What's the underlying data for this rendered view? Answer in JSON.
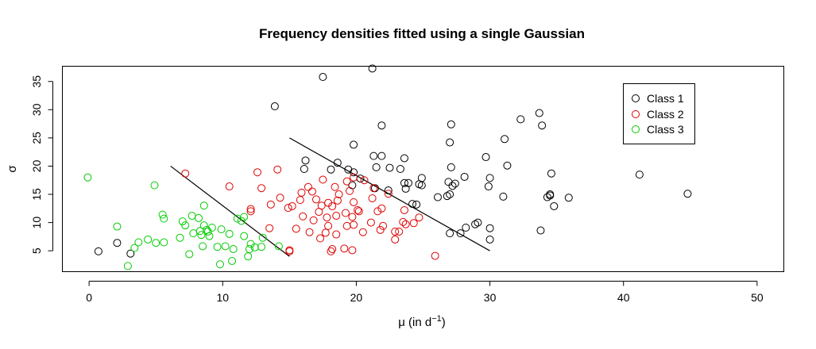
{
  "chart_data": {
    "type": "scatter",
    "title": "Frequency densities fitted using a single Gaussian",
    "xlabel_main": "μ (in d",
    "xlabel_sup": "−1",
    "xlabel_end": ")",
    "ylabel": "σ",
    "xlim": [
      -2,
      52
    ],
    "ylim": [
      1.3,
      37.7
    ],
    "x_ticks": [
      0,
      10,
      20,
      30,
      40,
      50
    ],
    "y_ticks": [
      5,
      10,
      15,
      20,
      25,
      30,
      35
    ],
    "legend_position": "top-right",
    "series": [
      {
        "name": "Class 1",
        "color": "#000000",
        "points": [
          [
            0.7,
            4.9
          ],
          [
            2.1,
            6.4
          ],
          [
            3.1,
            4.5
          ],
          [
            13.9,
            30.6
          ],
          [
            16.1,
            19.5
          ],
          [
            16.2,
            21.0
          ],
          [
            17.5,
            35.8
          ],
          [
            18.1,
            19.4
          ],
          [
            18.6,
            20.6
          ],
          [
            19.4,
            19.4
          ],
          [
            19.7,
            16.6
          ],
          [
            19.8,
            23.8
          ],
          [
            19.8,
            18.9
          ],
          [
            20.3,
            17.8
          ],
          [
            21.2,
            37.3
          ],
          [
            21.3,
            21.8
          ],
          [
            21.4,
            16.1
          ],
          [
            21.5,
            19.8
          ],
          [
            21.9,
            27.2
          ],
          [
            21.9,
            21.8
          ],
          [
            22.4,
            15.7
          ],
          [
            22.5,
            19.7
          ],
          [
            23.3,
            19.5
          ],
          [
            23.6,
            21.4
          ],
          [
            23.6,
            17.0
          ],
          [
            23.7,
            16.0
          ],
          [
            23.9,
            17.0
          ],
          [
            24.2,
            13.3
          ],
          [
            24.5,
            13.2
          ],
          [
            24.7,
            16.8
          ],
          [
            24.9,
            17.9
          ],
          [
            24.9,
            16.6
          ],
          [
            26.1,
            14.5
          ],
          [
            26.8,
            14.7
          ],
          [
            26.9,
            17.2
          ],
          [
            27.0,
            8.1
          ],
          [
            27.0,
            24.2
          ],
          [
            27.0,
            15.0
          ],
          [
            27.1,
            27.4
          ],
          [
            27.1,
            19.8
          ],
          [
            27.2,
            16.5
          ],
          [
            27.4,
            16.9
          ],
          [
            27.8,
            8.1
          ],
          [
            28.1,
            18.1
          ],
          [
            28.2,
            9.1
          ],
          [
            28.9,
            9.7
          ],
          [
            29.1,
            10.0
          ],
          [
            29.7,
            21.6
          ],
          [
            29.9,
            16.4
          ],
          [
            30.0,
            7.0
          ],
          [
            30.0,
            17.9
          ],
          [
            30.0,
            9.0
          ],
          [
            31.0,
            14.6
          ],
          [
            31.1,
            24.8
          ],
          [
            31.3,
            20.1
          ],
          [
            32.3,
            28.3
          ],
          [
            33.7,
            29.4
          ],
          [
            33.8,
            8.6
          ],
          [
            33.9,
            27.2
          ],
          [
            34.3,
            14.5
          ],
          [
            34.5,
            15.0
          ],
          [
            34.5,
            14.8
          ],
          [
            34.6,
            18.7
          ],
          [
            34.8,
            12.9
          ],
          [
            35.9,
            14.4
          ],
          [
            41.2,
            18.5
          ],
          [
            44.8,
            15.1
          ]
        ]
      },
      {
        "name": "Class 2",
        "color": "#df0000",
        "points": [
          [
            7.2,
            18.7
          ],
          [
            10.5,
            16.4
          ],
          [
            12.1,
            12.4
          ],
          [
            12.1,
            12.0
          ],
          [
            12.6,
            18.9
          ],
          [
            12.9,
            16.1
          ],
          [
            13.5,
            9.0
          ],
          [
            13.6,
            13.2
          ],
          [
            14.1,
            19.4
          ],
          [
            14.3,
            14.4
          ],
          [
            14.9,
            12.6
          ],
          [
            15.0,
            5.1
          ],
          [
            15.0,
            4.9
          ],
          [
            15.2,
            12.9
          ],
          [
            15.5,
            8.9
          ],
          [
            15.8,
            14.0
          ],
          [
            15.9,
            15.3
          ],
          [
            16.0,
            11.1
          ],
          [
            16.4,
            16.3
          ],
          [
            16.5,
            8.3
          ],
          [
            16.7,
            15.5
          ],
          [
            16.8,
            10.4
          ],
          [
            17.0,
            14.1
          ],
          [
            17.2,
            11.9
          ],
          [
            17.3,
            7.2
          ],
          [
            17.4,
            13.0
          ],
          [
            17.5,
            17.6
          ],
          [
            17.7,
            8.2
          ],
          [
            17.8,
            10.9
          ],
          [
            17.9,
            9.4
          ],
          [
            17.9,
            13.5
          ],
          [
            18.1,
            4.9
          ],
          [
            18.2,
            5.3
          ],
          [
            18.2,
            12.9
          ],
          [
            18.4,
            16.3
          ],
          [
            18.5,
            11.2
          ],
          [
            18.5,
            7.9
          ],
          [
            18.6,
            13.9
          ],
          [
            18.7,
            15.0
          ],
          [
            19.1,
            5.4
          ],
          [
            19.2,
            11.7
          ],
          [
            19.3,
            17.3
          ],
          [
            19.3,
            9.4
          ],
          [
            19.5,
            15.6
          ],
          [
            19.7,
            5.1
          ],
          [
            19.7,
            11.0
          ],
          [
            19.8,
            18.0
          ],
          [
            19.8,
            13.6
          ],
          [
            19.8,
            9.6
          ],
          [
            20.1,
            12.2
          ],
          [
            20.2,
            12.0
          ],
          [
            20.5,
            8.3
          ],
          [
            20.6,
            17.5
          ],
          [
            21.1,
            10.0
          ],
          [
            21.2,
            14.3
          ],
          [
            21.3,
            16.1
          ],
          [
            21.6,
            12.0
          ],
          [
            21.8,
            8.7
          ],
          [
            21.9,
            12.5
          ],
          [
            22.0,
            9.4
          ],
          [
            22.4,
            15.1
          ],
          [
            22.9,
            7.0
          ],
          [
            22.9,
            8.4
          ],
          [
            23.2,
            8.4
          ],
          [
            23.5,
            10.1
          ],
          [
            23.6,
            12.2
          ],
          [
            23.7,
            9.7
          ],
          [
            24.3,
            9.9
          ],
          [
            24.7,
            10.9
          ],
          [
            25.9,
            4.1
          ]
        ]
      },
      {
        "name": "Class 3",
        "color": "#00cc00",
        "points": [
          [
            -0.1,
            18.0
          ],
          [
            2.1,
            9.3
          ],
          [
            2.9,
            2.3
          ],
          [
            3.4,
            5.5
          ],
          [
            3.7,
            6.5
          ],
          [
            4.4,
            7.0
          ],
          [
            4.9,
            16.6
          ],
          [
            5.0,
            6.4
          ],
          [
            5.5,
            11.4
          ],
          [
            5.6,
            10.7
          ],
          [
            5.6,
            6.5
          ],
          [
            6.8,
            7.3
          ],
          [
            7.0,
            10.2
          ],
          [
            7.2,
            9.5
          ],
          [
            7.5,
            4.4
          ],
          [
            7.7,
            11.2
          ],
          [
            7.8,
            8.1
          ],
          [
            8.2,
            10.8
          ],
          [
            8.3,
            8.5
          ],
          [
            8.4,
            7.8
          ],
          [
            8.5,
            5.8
          ],
          [
            8.6,
            13.0
          ],
          [
            8.6,
            9.5
          ],
          [
            8.8,
            8.7
          ],
          [
            8.9,
            8.4
          ],
          [
            9.0,
            7.6
          ],
          [
            9.2,
            9.1
          ],
          [
            9.6,
            5.7
          ],
          [
            9.8,
            2.6
          ],
          [
            9.9,
            8.8
          ],
          [
            10.2,
            5.8
          ],
          [
            10.5,
            8.0
          ],
          [
            10.7,
            3.2
          ],
          [
            10.8,
            5.3
          ],
          [
            11.1,
            10.7
          ],
          [
            11.4,
            10.3
          ],
          [
            11.6,
            11.0
          ],
          [
            11.6,
            7.6
          ],
          [
            11.9,
            4.0
          ],
          [
            12.0,
            5.3
          ],
          [
            12.1,
            6.2
          ],
          [
            12.4,
            5.6
          ],
          [
            12.9,
            5.7
          ],
          [
            13.0,
            7.3
          ],
          [
            14.2,
            5.8
          ]
        ]
      }
    ],
    "lines": [
      {
        "color": "#000000",
        "from": [
          6.1,
          20.0
        ],
        "to": [
          15.0,
          4.0
        ]
      },
      {
        "color": "#000000",
        "from": [
          15.0,
          25.0
        ],
        "to": [
          30.0,
          5.0
        ]
      }
    ]
  }
}
